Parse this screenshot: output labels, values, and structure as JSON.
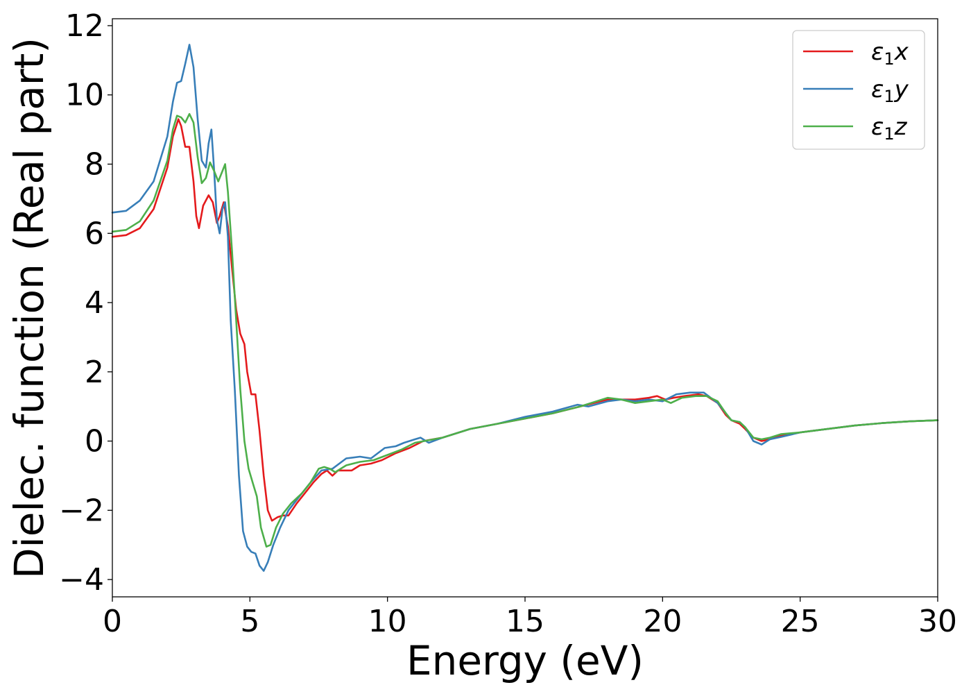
{
  "chart_data": {
    "type": "line",
    "title": "",
    "xlabel": "Energy (eV)",
    "ylabel": "Dielec. function (Real part)",
    "xlim": [
      0,
      30
    ],
    "ylim": [
      -4.5,
      12.2
    ],
    "xticks": [
      0,
      5,
      10,
      15,
      20,
      25,
      30
    ],
    "xtick_labels": [
      "0",
      "5",
      "10",
      "15",
      "20",
      "25",
      "30"
    ],
    "yticks": [
      -4,
      -2,
      0,
      2,
      4,
      6,
      8,
      10,
      12
    ],
    "ytick_labels": [
      "−4",
      "−2",
      "0",
      "2",
      "4",
      "6",
      "8",
      "10",
      "12"
    ],
    "grid": false,
    "legend_position": "top-right",
    "series": [
      {
        "name": "ε₁x",
        "legend_base": "ε",
        "legend_sub": "1",
        "legend_var": "x",
        "color": "#e41a1c",
        "points": [
          [
            0,
            5.9
          ],
          [
            0.5,
            5.95
          ],
          [
            1.0,
            6.15
          ],
          [
            1.5,
            6.7
          ],
          [
            2.0,
            7.9
          ],
          [
            2.2,
            8.8
          ],
          [
            2.4,
            9.3
          ],
          [
            2.5,
            9.1
          ],
          [
            2.65,
            8.5
          ],
          [
            2.8,
            8.5
          ],
          [
            2.95,
            7.5
          ],
          [
            3.05,
            6.5
          ],
          [
            3.15,
            6.15
          ],
          [
            3.3,
            6.8
          ],
          [
            3.5,
            7.1
          ],
          [
            3.65,
            6.9
          ],
          [
            3.8,
            6.3
          ],
          [
            3.9,
            6.5
          ],
          [
            4.05,
            6.9
          ],
          [
            4.2,
            6.2
          ],
          [
            4.35,
            5.0
          ],
          [
            4.5,
            3.8
          ],
          [
            4.65,
            3.1
          ],
          [
            4.8,
            2.8
          ],
          [
            4.9,
            2.0
          ],
          [
            5.05,
            1.35
          ],
          [
            5.2,
            1.35
          ],
          [
            5.35,
            0.3
          ],
          [
            5.5,
            -1.0
          ],
          [
            5.65,
            -2.0
          ],
          [
            5.8,
            -2.3
          ],
          [
            6.0,
            -2.2
          ],
          [
            6.2,
            -2.15
          ],
          [
            6.4,
            -2.15
          ],
          [
            6.7,
            -1.8
          ],
          [
            7.0,
            -1.5
          ],
          [
            7.3,
            -1.2
          ],
          [
            7.6,
            -0.95
          ],
          [
            7.8,
            -0.85
          ],
          [
            8.0,
            -1.0
          ],
          [
            8.2,
            -0.85
          ],
          [
            8.5,
            -0.85
          ],
          [
            8.7,
            -0.85
          ],
          [
            9.0,
            -0.7
          ],
          [
            9.4,
            -0.65
          ],
          [
            9.8,
            -0.55
          ],
          [
            10.3,
            -0.35
          ],
          [
            10.8,
            -0.2
          ],
          [
            11.3,
            0.0
          ],
          [
            12.0,
            0.1
          ],
          [
            13.0,
            0.35
          ],
          [
            14.0,
            0.5
          ],
          [
            15.0,
            0.65
          ],
          [
            16.0,
            0.8
          ],
          [
            17.0,
            1.0
          ],
          [
            18.0,
            1.2
          ],
          [
            18.5,
            1.2
          ],
          [
            19.0,
            1.2
          ],
          [
            19.5,
            1.25
          ],
          [
            19.8,
            1.3
          ],
          [
            20.1,
            1.2
          ],
          [
            20.4,
            1.25
          ],
          [
            20.8,
            1.3
          ],
          [
            21.3,
            1.35
          ],
          [
            21.6,
            1.3
          ],
          [
            22.0,
            1.1
          ],
          [
            22.3,
            0.75
          ],
          [
            22.5,
            0.6
          ],
          [
            22.8,
            0.5
          ],
          [
            23.0,
            0.35
          ],
          [
            23.3,
            0.1
          ],
          [
            23.6,
            0.0
          ],
          [
            23.9,
            0.05
          ],
          [
            24.3,
            0.15
          ],
          [
            25.0,
            0.25
          ],
          [
            26.0,
            0.35
          ],
          [
            27.0,
            0.45
          ],
          [
            28.0,
            0.52
          ],
          [
            29.0,
            0.57
          ],
          [
            30.0,
            0.6
          ]
        ]
      },
      {
        "name": "ε₁y",
        "legend_base": "ε",
        "legend_sub": "1",
        "legend_var": "y",
        "color": "#377eb8",
        "points": [
          [
            0,
            6.6
          ],
          [
            0.5,
            6.65
          ],
          [
            1.0,
            6.95
          ],
          [
            1.5,
            7.5
          ],
          [
            2.0,
            8.8
          ],
          [
            2.2,
            9.8
          ],
          [
            2.35,
            10.35
          ],
          [
            2.5,
            10.4
          ],
          [
            2.65,
            10.9
          ],
          [
            2.8,
            11.45
          ],
          [
            2.95,
            10.8
          ],
          [
            3.1,
            9.3
          ],
          [
            3.25,
            8.1
          ],
          [
            3.4,
            7.9
          ],
          [
            3.5,
            8.6
          ],
          [
            3.6,
            9.0
          ],
          [
            3.7,
            7.8
          ],
          [
            3.8,
            6.4
          ],
          [
            3.9,
            6.0
          ],
          [
            4.0,
            6.7
          ],
          [
            4.1,
            6.9
          ],
          [
            4.2,
            5.9
          ],
          [
            4.3,
            3.5
          ],
          [
            4.45,
            1.5
          ],
          [
            4.6,
            -1.0
          ],
          [
            4.75,
            -2.6
          ],
          [
            4.9,
            -3.05
          ],
          [
            5.05,
            -3.2
          ],
          [
            5.2,
            -3.25
          ],
          [
            5.35,
            -3.6
          ],
          [
            5.5,
            -3.75
          ],
          [
            5.65,
            -3.5
          ],
          [
            5.85,
            -3.0
          ],
          [
            6.1,
            -2.5
          ],
          [
            6.4,
            -2.0
          ],
          [
            6.8,
            -1.6
          ],
          [
            7.2,
            -1.2
          ],
          [
            7.6,
            -0.85
          ],
          [
            8.0,
            -0.8
          ],
          [
            8.5,
            -0.5
          ],
          [
            9.0,
            -0.45
          ],
          [
            9.4,
            -0.5
          ],
          [
            9.9,
            -0.2
          ],
          [
            10.3,
            -0.15
          ],
          [
            10.6,
            -0.05
          ],
          [
            11.0,
            0.05
          ],
          [
            11.2,
            0.1
          ],
          [
            11.5,
            -0.05
          ],
          [
            12.0,
            0.1
          ],
          [
            13.0,
            0.35
          ],
          [
            14.0,
            0.5
          ],
          [
            15.0,
            0.7
          ],
          [
            16.0,
            0.85
          ],
          [
            16.9,
            1.05
          ],
          [
            17.3,
            1.0
          ],
          [
            18.0,
            1.15
          ],
          [
            18.5,
            1.2
          ],
          [
            19.0,
            1.15
          ],
          [
            19.5,
            1.2
          ],
          [
            20.0,
            1.15
          ],
          [
            20.5,
            1.35
          ],
          [
            21.0,
            1.4
          ],
          [
            21.5,
            1.4
          ],
          [
            22.0,
            1.1
          ],
          [
            22.3,
            0.8
          ],
          [
            22.5,
            0.6
          ],
          [
            22.8,
            0.55
          ],
          [
            23.0,
            0.4
          ],
          [
            23.3,
            0.0
          ],
          [
            23.6,
            -0.1
          ],
          [
            23.9,
            0.05
          ],
          [
            24.3,
            0.12
          ],
          [
            25.0,
            0.25
          ],
          [
            26.0,
            0.35
          ],
          [
            27.0,
            0.45
          ],
          [
            28.0,
            0.52
          ],
          [
            29.0,
            0.57
          ],
          [
            30.0,
            0.6
          ]
        ]
      },
      {
        "name": "ε₁z",
        "legend_base": "ε",
        "legend_sub": "1",
        "legend_var": "z",
        "color": "#4daf4a",
        "points": [
          [
            0,
            6.05
          ],
          [
            0.5,
            6.1
          ],
          [
            1.0,
            6.35
          ],
          [
            1.5,
            6.95
          ],
          [
            2.0,
            8.1
          ],
          [
            2.2,
            9.0
          ],
          [
            2.35,
            9.4
          ],
          [
            2.5,
            9.35
          ],
          [
            2.65,
            9.2
          ],
          [
            2.8,
            9.45
          ],
          [
            2.95,
            9.2
          ],
          [
            3.1,
            8.2
          ],
          [
            3.25,
            7.45
          ],
          [
            3.4,
            7.6
          ],
          [
            3.55,
            8.05
          ],
          [
            3.7,
            7.8
          ],
          [
            3.85,
            7.5
          ],
          [
            4.0,
            7.8
          ],
          [
            4.1,
            8.0
          ],
          [
            4.2,
            7.2
          ],
          [
            4.35,
            5.5
          ],
          [
            4.5,
            3.5
          ],
          [
            4.65,
            1.5
          ],
          [
            4.8,
            0.0
          ],
          [
            4.95,
            -0.8
          ],
          [
            5.1,
            -1.2
          ],
          [
            5.25,
            -1.6
          ],
          [
            5.4,
            -2.5
          ],
          [
            5.6,
            -3.05
          ],
          [
            5.75,
            -3.0
          ],
          [
            5.95,
            -2.5
          ],
          [
            6.2,
            -2.1
          ],
          [
            6.5,
            -1.8
          ],
          [
            6.9,
            -1.5
          ],
          [
            7.2,
            -1.2
          ],
          [
            7.5,
            -0.8
          ],
          [
            7.7,
            -0.75
          ],
          [
            7.9,
            -0.8
          ],
          [
            8.1,
            -0.9
          ],
          [
            8.5,
            -0.7
          ],
          [
            9.0,
            -0.6
          ],
          [
            9.5,
            -0.55
          ],
          [
            10.0,
            -0.4
          ],
          [
            10.5,
            -0.25
          ],
          [
            11.0,
            -0.05
          ],
          [
            12.0,
            0.1
          ],
          [
            13.0,
            0.35
          ],
          [
            14.0,
            0.5
          ],
          [
            15.0,
            0.65
          ],
          [
            16.0,
            0.8
          ],
          [
            17.0,
            1.0
          ],
          [
            18.0,
            1.25
          ],
          [
            18.5,
            1.2
          ],
          [
            19.0,
            1.1
          ],
          [
            19.5,
            1.15
          ],
          [
            20.0,
            1.2
          ],
          [
            20.3,
            1.1
          ],
          [
            20.7,
            1.25
          ],
          [
            21.2,
            1.3
          ],
          [
            21.6,
            1.3
          ],
          [
            22.0,
            1.15
          ],
          [
            22.3,
            0.8
          ],
          [
            22.5,
            0.6
          ],
          [
            22.8,
            0.55
          ],
          [
            23.0,
            0.4
          ],
          [
            23.3,
            0.1
          ],
          [
            23.6,
            0.05
          ],
          [
            23.9,
            0.1
          ],
          [
            24.3,
            0.2
          ],
          [
            25.0,
            0.25
          ],
          [
            26.0,
            0.35
          ],
          [
            27.0,
            0.45
          ],
          [
            28.0,
            0.52
          ],
          [
            29.0,
            0.57
          ],
          [
            30.0,
            0.6
          ]
        ]
      }
    ]
  }
}
